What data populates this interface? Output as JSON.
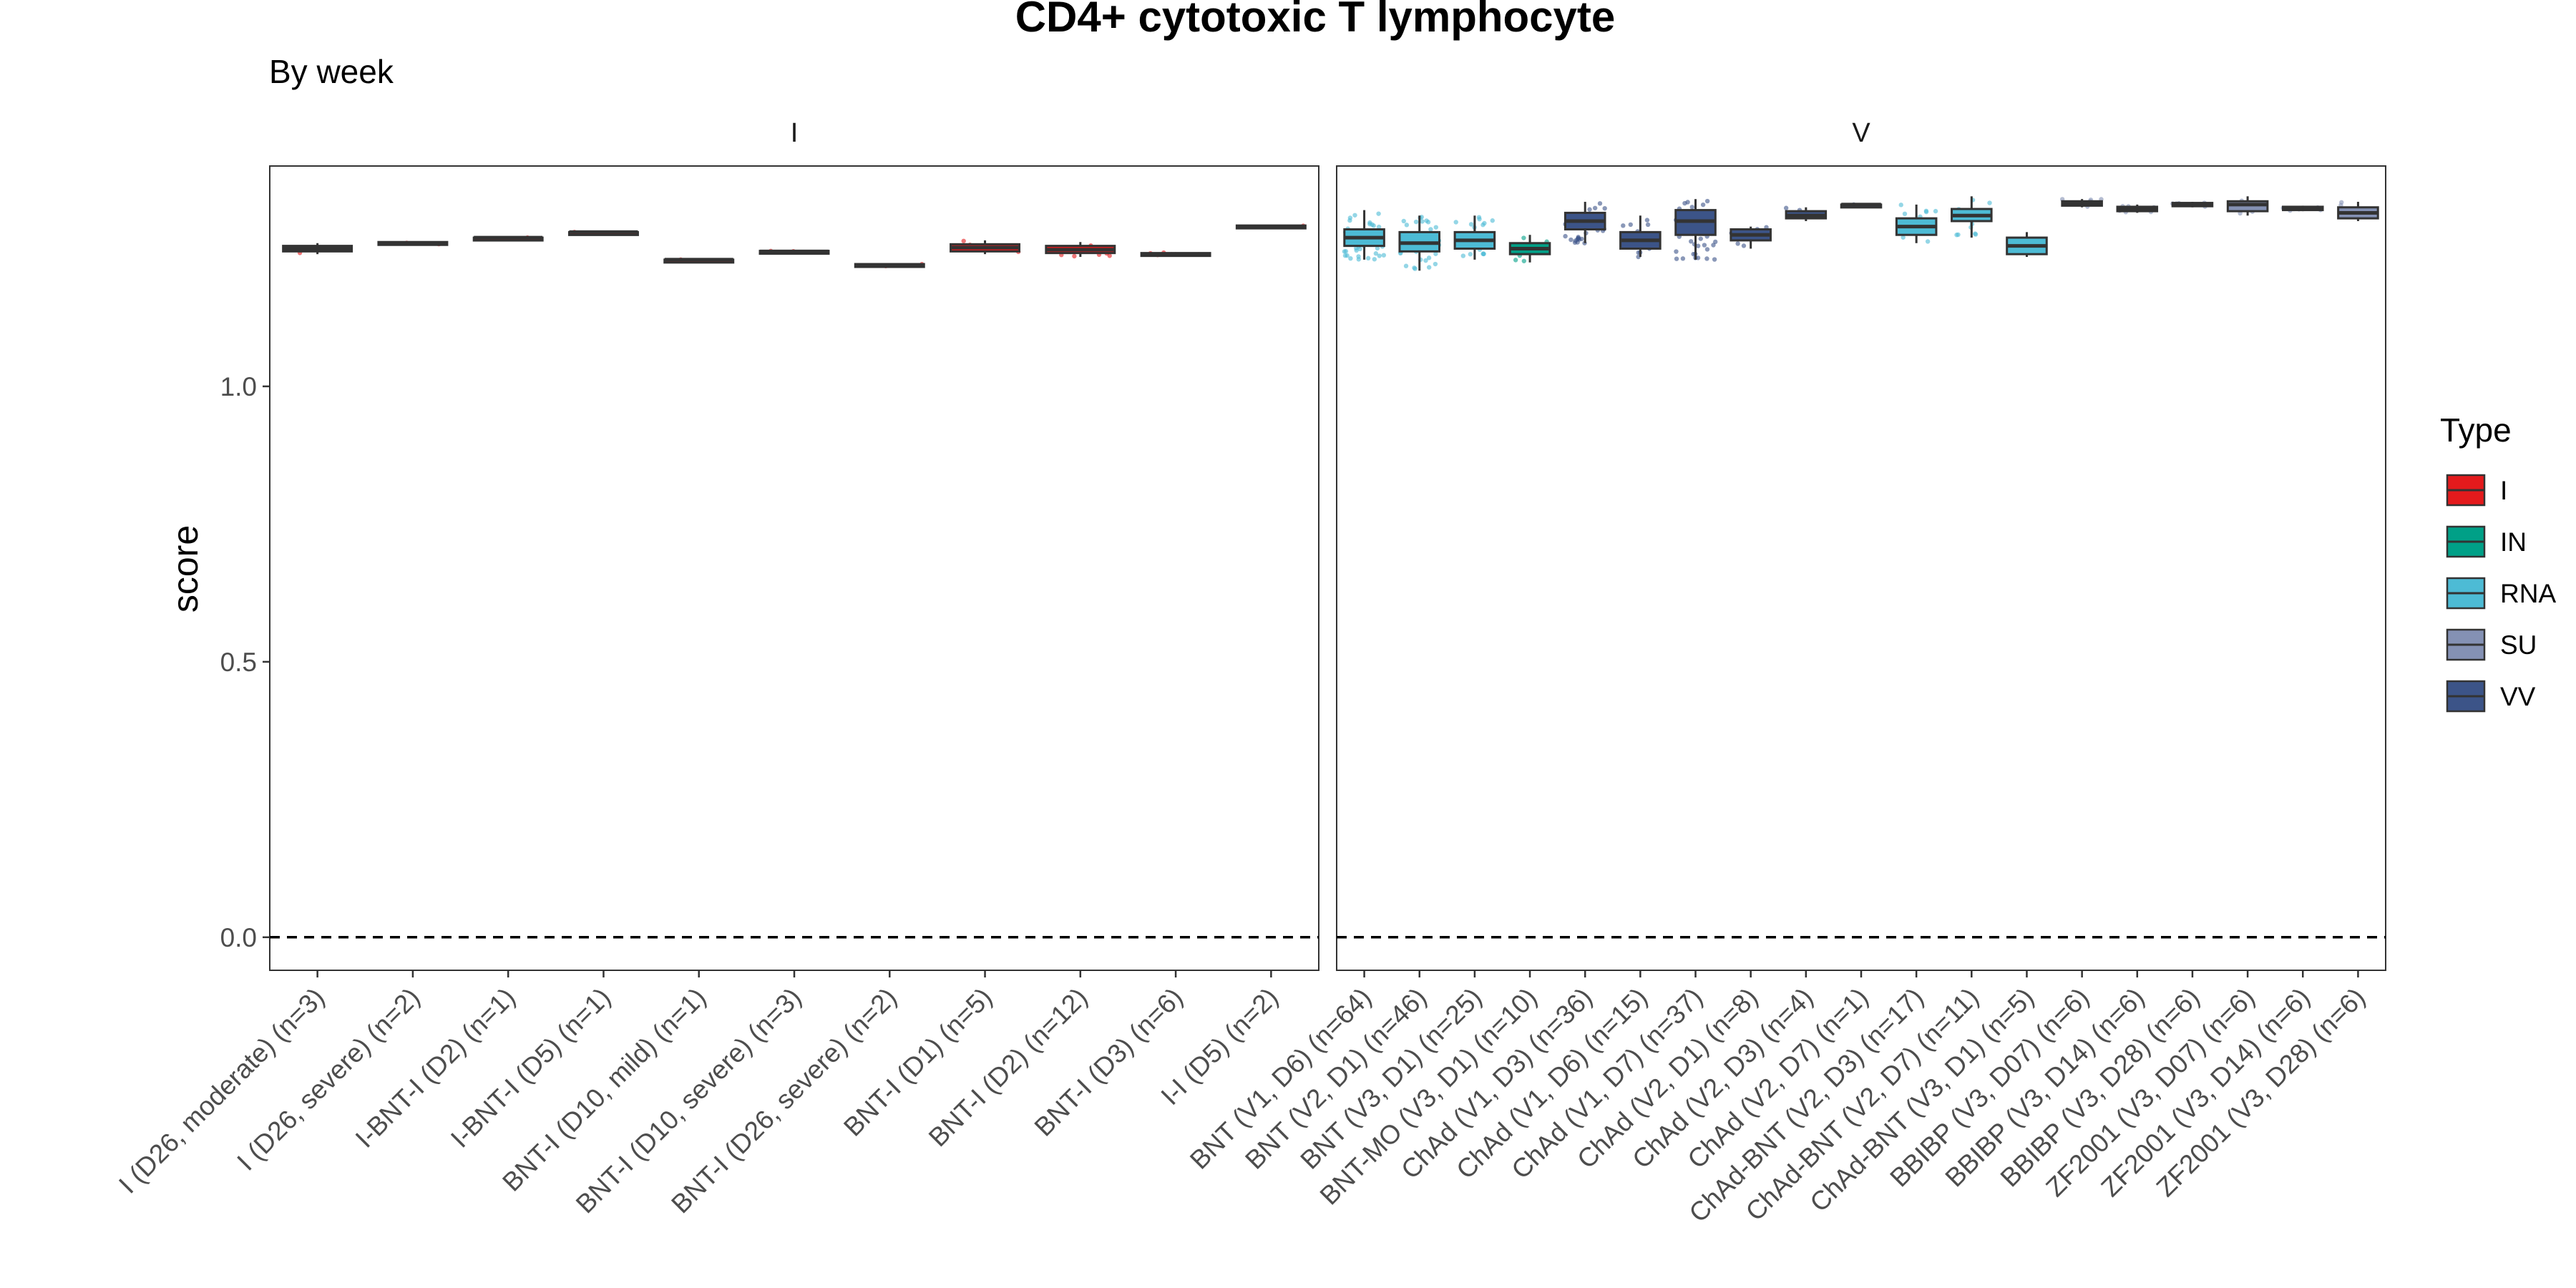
{
  "chart_data": {
    "type": "box",
    "title": "CD4+ cytotoxic T lymphocyte",
    "subtitle": "By week",
    "ylabel": "score",
    "ylim": [
      -0.06,
      1.4
    ],
    "yticks": [
      "0.0",
      "0.5",
      "1.0"
    ],
    "reference_line": 0.0,
    "legend": {
      "title": "Type",
      "position": "right",
      "items": [
        {
          "label": "I",
          "color": "#E41A1C"
        },
        {
          "label": "IN",
          "color": "#00A087"
        },
        {
          "label": "RNA",
          "color": "#4DBBD5"
        },
        {
          "label": "SU",
          "color": "#8491B4"
        },
        {
          "label": "VV",
          "color": "#3C5488"
        }
      ]
    },
    "panels": [
      {
        "strip": "I",
        "groups": [
          {
            "label": "I (D26, moderate) (n=3)",
            "type": "I",
            "min": 1.24,
            "q1": 1.245,
            "median": 1.25,
            "q3": 1.255,
            "max": 1.26
          },
          {
            "label": "I (D26, severe) (n=2)",
            "type": "I",
            "min": 1.258,
            "q1": 1.258,
            "median": 1.26,
            "q3": 1.262,
            "max": 1.262
          },
          {
            "label": "I-BNT-I (D2) (n=1)",
            "type": "I",
            "min": 1.27,
            "q1": 1.27,
            "median": 1.27,
            "q3": 1.27,
            "max": 1.27
          },
          {
            "label": "I-BNT-I (D5) (n=1)",
            "type": "I",
            "min": 1.28,
            "q1": 1.28,
            "median": 1.28,
            "q3": 1.28,
            "max": 1.28
          },
          {
            "label": "BNT-I (D10, mild) (n=1)",
            "type": "I",
            "min": 1.23,
            "q1": 1.23,
            "median": 1.23,
            "q3": 1.23,
            "max": 1.23
          },
          {
            "label": "BNT-I (D10, severe) (n=3)",
            "type": "I",
            "min": 1.243,
            "q1": 1.244,
            "median": 1.245,
            "q3": 1.246,
            "max": 1.247
          },
          {
            "label": "BNT-I (D26, severe) (n=2)",
            "type": "I",
            "min": 1.218,
            "q1": 1.218,
            "median": 1.22,
            "q3": 1.222,
            "max": 1.222
          },
          {
            "label": "BNT-I (D1) (n=5)",
            "type": "I",
            "min": 1.24,
            "q1": 1.245,
            "median": 1.252,
            "q3": 1.258,
            "max": 1.265
          },
          {
            "label": "BNT-I (D2) (n=12)",
            "type": "I",
            "min": 1.235,
            "q1": 1.242,
            "median": 1.248,
            "q3": 1.255,
            "max": 1.262
          },
          {
            "label": "BNT-I (D3) (n=6)",
            "type": "I",
            "min": 1.237,
            "q1": 1.238,
            "median": 1.24,
            "q3": 1.242,
            "max": 1.243
          },
          {
            "label": "I-I (D5) (n=2)",
            "type": "I",
            "min": 1.288,
            "q1": 1.288,
            "median": 1.29,
            "q3": 1.292,
            "max": 1.292
          }
        ]
      },
      {
        "strip": "V",
        "groups": [
          {
            "label": "BNT (V1, D6) (n=64)",
            "type": "RNA",
            "min": 1.23,
            "q1": 1.255,
            "median": 1.27,
            "q3": 1.285,
            "max": 1.32
          },
          {
            "label": "BNT (V2, D1) (n=46)",
            "type": "RNA",
            "min": 1.21,
            "q1": 1.245,
            "median": 1.26,
            "q3": 1.28,
            "max": 1.31
          },
          {
            "label": "BNT (V3, D1) (n=25)",
            "type": "RNA",
            "min": 1.23,
            "q1": 1.25,
            "median": 1.265,
            "q3": 1.28,
            "max": 1.31
          },
          {
            "label": "BNT-MO (V3, D1) (n=10)",
            "type": "IN",
            "min": 1.225,
            "q1": 1.24,
            "median": 1.25,
            "q3": 1.26,
            "max": 1.275
          },
          {
            "label": "ChAd (V1, D3) (n=36)",
            "type": "VV",
            "min": 1.26,
            "q1": 1.285,
            "median": 1.3,
            "q3": 1.315,
            "max": 1.335
          },
          {
            "label": "ChAd (V1, D6) (n=15)",
            "type": "VV",
            "min": 1.235,
            "q1": 1.25,
            "median": 1.265,
            "q3": 1.28,
            "max": 1.31
          },
          {
            "label": "ChAd (V1, D7) (n=37)",
            "type": "VV",
            "min": 1.23,
            "q1": 1.275,
            "median": 1.3,
            "q3": 1.32,
            "max": 1.34
          },
          {
            "label": "ChAd (V2, D1) (n=8)",
            "type": "VV",
            "min": 1.25,
            "q1": 1.265,
            "median": 1.275,
            "q3": 1.285,
            "max": 1.29
          },
          {
            "label": "ChAd (V2, D3) (n=4)",
            "type": "VV",
            "min": 1.3,
            "q1": 1.305,
            "median": 1.31,
            "q3": 1.318,
            "max": 1.325
          },
          {
            "label": "ChAd (V2, D7) (n=1)",
            "type": "VV",
            "min": 1.33,
            "q1": 1.33,
            "median": 1.33,
            "q3": 1.33,
            "max": 1.33
          },
          {
            "label": "ChAd-BNT (V2, D3) (n=17)",
            "type": "RNA",
            "min": 1.26,
            "q1": 1.275,
            "median": 1.29,
            "q3": 1.305,
            "max": 1.33
          },
          {
            "label": "ChAd-BNT (V2, D7) (n=11)",
            "type": "RNA",
            "min": 1.27,
            "q1": 1.3,
            "median": 1.31,
            "q3": 1.322,
            "max": 1.345
          },
          {
            "label": "ChAd-BNT (V3, D1) (n=5)",
            "type": "RNA",
            "min": 1.235,
            "q1": 1.24,
            "median": 1.255,
            "q3": 1.27,
            "max": 1.28
          },
          {
            "label": "BBIBP (V3, D07) (n=6)",
            "type": "SU",
            "min": 1.325,
            "q1": 1.328,
            "median": 1.332,
            "q3": 1.336,
            "max": 1.34
          },
          {
            "label": "BBIBP (V3, D14) (n=6)",
            "type": "SU",
            "min": 1.315,
            "q1": 1.318,
            "median": 1.322,
            "q3": 1.326,
            "max": 1.33
          },
          {
            "label": "BBIBP (V3, D28) (n=6)",
            "type": "SU",
            "min": 1.325,
            "q1": 1.327,
            "median": 1.33,
            "q3": 1.333,
            "max": 1.335
          },
          {
            "label": "ZF2001 (V3, D07) (n=6)",
            "type": "SU",
            "min": 1.31,
            "q1": 1.318,
            "median": 1.33,
            "q3": 1.336,
            "max": 1.345
          },
          {
            "label": "ZF2001 (V3, D14) (n=6)",
            "type": "SU",
            "min": 1.318,
            "q1": 1.32,
            "median": 1.323,
            "q3": 1.326,
            "max": 1.328
          },
          {
            "label": "ZF2001 (V3, D28) (n=6)",
            "type": "SU",
            "min": 1.3,
            "q1": 1.305,
            "median": 1.315,
            "q3": 1.325,
            "max": 1.335
          }
        ]
      }
    ]
  }
}
